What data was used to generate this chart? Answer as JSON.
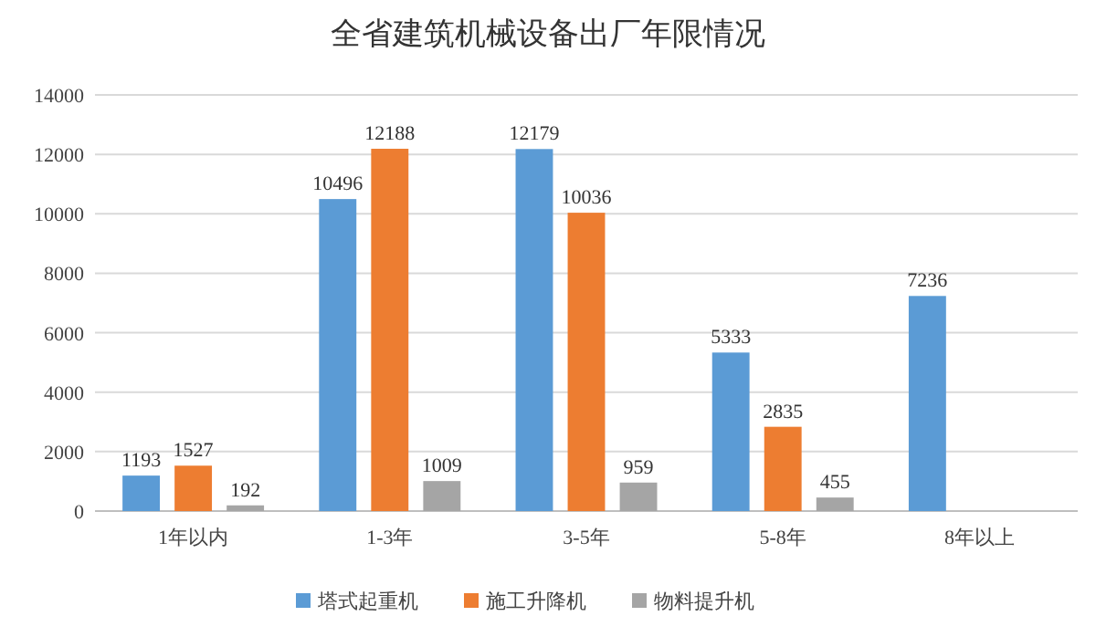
{
  "chart_data": {
    "type": "bar",
    "title": "全省建筑机械设备出厂年限情况",
    "categories": [
      "1年以内",
      "1-3年",
      "3-5年",
      "5-8年",
      "8年以上"
    ],
    "series": [
      {
        "name": "塔式起重机",
        "color": "#5b9bd5",
        "values": [
          1193,
          10496,
          12179,
          5333,
          7236
        ]
      },
      {
        "name": "施工升降机",
        "color": "#ed7d31",
        "values": [
          1527,
          12188,
          10036,
          2835,
          null
        ]
      },
      {
        "name": "物料提升机",
        "color": "#a5a5a5",
        "values": [
          192,
          1009,
          959,
          455,
          null
        ]
      }
    ],
    "ylim": [
      0,
      14000
    ],
    "yticks": [
      0,
      2000,
      4000,
      6000,
      8000,
      10000,
      12000,
      14000
    ],
    "grid": "y",
    "legend": "bottom",
    "data_labels": true
  }
}
